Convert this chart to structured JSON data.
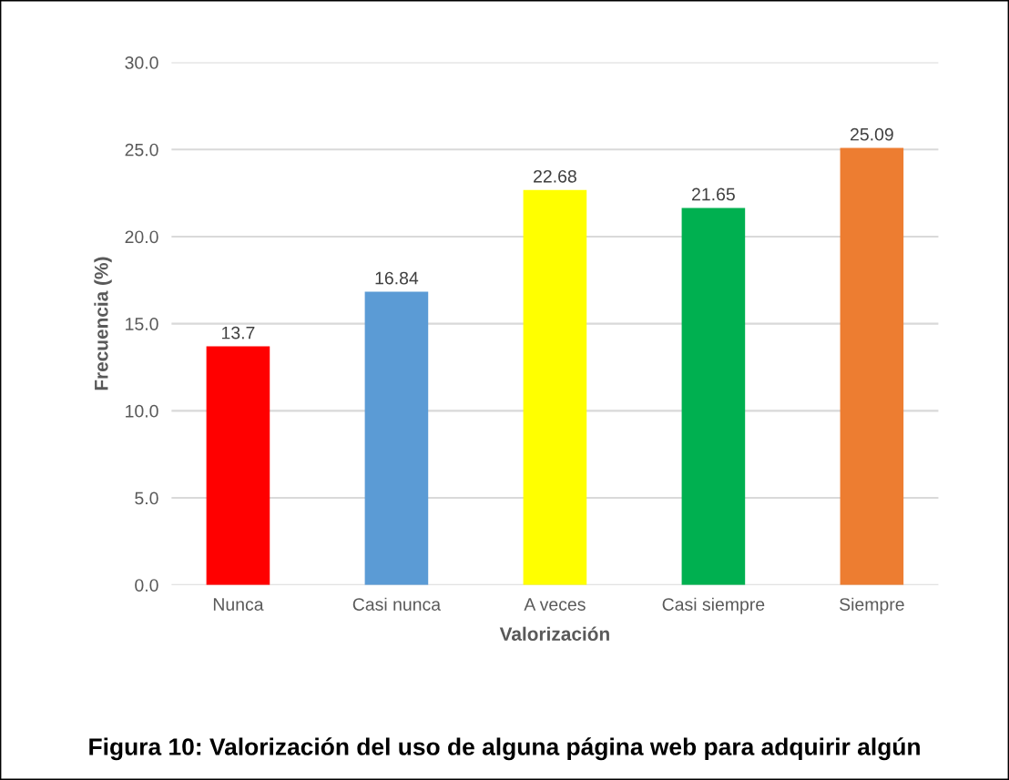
{
  "chart_data": {
    "type": "bar",
    "categories": [
      "Nunca",
      "Casi nunca",
      "A veces",
      "Casi siempre",
      "Siempre"
    ],
    "values": [
      13.7,
      16.84,
      22.68,
      21.65,
      25.09
    ],
    "colors": [
      "#ff0000",
      "#5b9bd5",
      "#ffff00",
      "#00b050",
      "#ed7d31"
    ],
    "xlabel": "Valorización",
    "ylabel": "Frecuencia (%)",
    "ylim": [
      0,
      30
    ],
    "yticks": [
      {
        "value": 0,
        "label": "0.0"
      },
      {
        "value": 5,
        "label": "5.0"
      },
      {
        "value": 10,
        "label": "10.0"
      },
      {
        "value": 15,
        "label": "15.0"
      },
      {
        "value": 20,
        "label": "20.0"
      },
      {
        "value": 25,
        "label": "25.0"
      },
      {
        "value": 30,
        "label": "30.0"
      }
    ],
    "grid": "y",
    "data_labels": true,
    "annotations": [
      "Figura 10: Valorización del uso de alguna página web para adquirir algún"
    ]
  }
}
